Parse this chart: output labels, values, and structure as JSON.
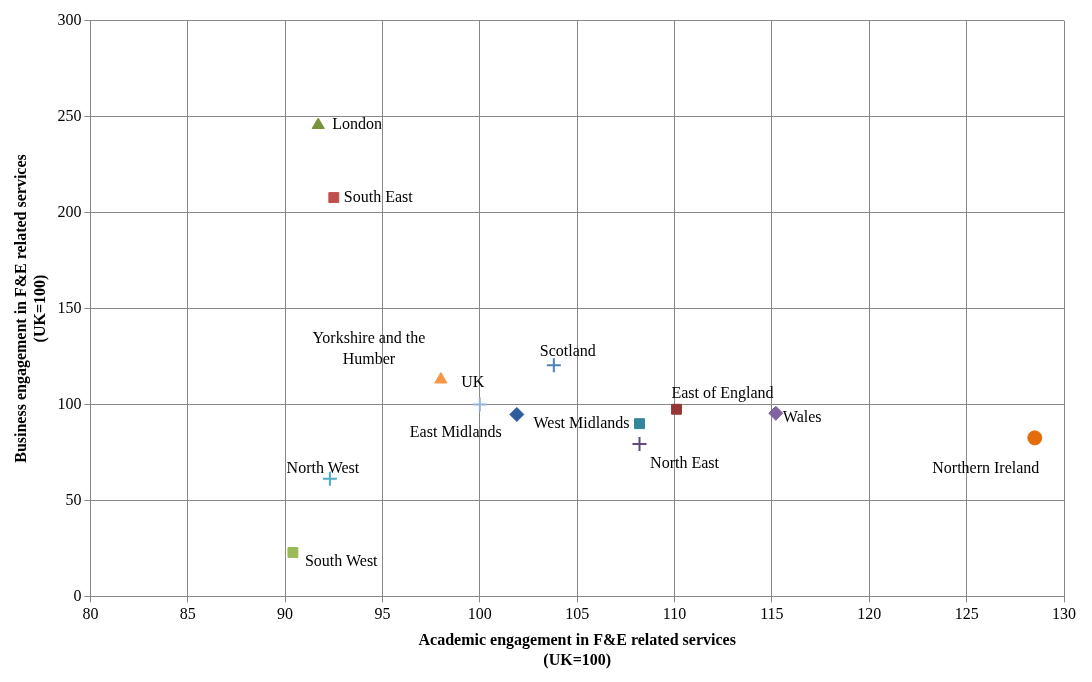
{
  "chart_data": {
    "type": "scatter",
    "xlabel": "Academic engagement in F&E related services\n(UK=100)",
    "ylabel": "Business engagement in F&E related services\n(UK=100)",
    "xlim": [
      80,
      130
    ],
    "xticks": [
      80,
      85,
      90,
      95,
      100,
      105,
      110,
      115,
      120,
      125,
      130
    ],
    "ylim": [
      0,
      300
    ],
    "yticks": [
      0,
      50,
      100,
      150,
      200,
      250,
      300
    ],
    "grid": true,
    "legend": false,
    "series": [
      {
        "name": "London",
        "color": "#77933c",
        "marker": "triangle",
        "x": [
          91.7
        ],
        "values": [
          245.6
        ]
      },
      {
        "name": "South East",
        "color": "#c0504d",
        "marker": "square",
        "x": [
          92.5
        ],
        "values": [
          207.8
        ]
      },
      {
        "name": "Yorkshire and the Humber",
        "color": "#f79646",
        "marker": "triangle",
        "x": [
          98.0
        ],
        "values": [
          113
        ]
      },
      {
        "name": "UK",
        "color": "#95b3d7",
        "marker": "cross",
        "x": [
          100
        ],
        "values": [
          100
        ]
      },
      {
        "name": "East Midlands",
        "color": "#2e5d9e",
        "marker": "diamond",
        "x": [
          101.9
        ],
        "values": [
          94.8
        ]
      },
      {
        "name": "Scotland",
        "color": "#4f81bd",
        "marker": "cross",
        "x": [
          103.8
        ],
        "values": [
          120.4
        ]
      },
      {
        "name": "West Midlands",
        "color": "#31859c",
        "marker": "square",
        "x": [
          108.2
        ],
        "values": [
          90
        ]
      },
      {
        "name": "North East",
        "color": "#604a7b",
        "marker": "cross",
        "x": [
          108.2
        ],
        "values": [
          79.4
        ]
      },
      {
        "name": "East of England",
        "color": "#953735",
        "marker": "square",
        "x": [
          110.1
        ],
        "values": [
          97.5
        ]
      },
      {
        "name": "Wales",
        "color": "#8064a2",
        "marker": "diamond",
        "x": [
          115.2
        ],
        "values": [
          95.4
        ]
      },
      {
        "name": "Northern Ireland",
        "color": "#e46c0a",
        "marker": "circle",
        "x": [
          128.5
        ],
        "values": [
          82.6
        ]
      },
      {
        "name": "North West",
        "color": "#4bacc6",
        "marker": "cross",
        "x": [
          92.3
        ],
        "values": [
          61.3
        ]
      },
      {
        "name": "South West",
        "color": "#9bbb59",
        "marker": "square",
        "x": [
          90.4
        ],
        "values": [
          22.9
        ]
      }
    ]
  }
}
